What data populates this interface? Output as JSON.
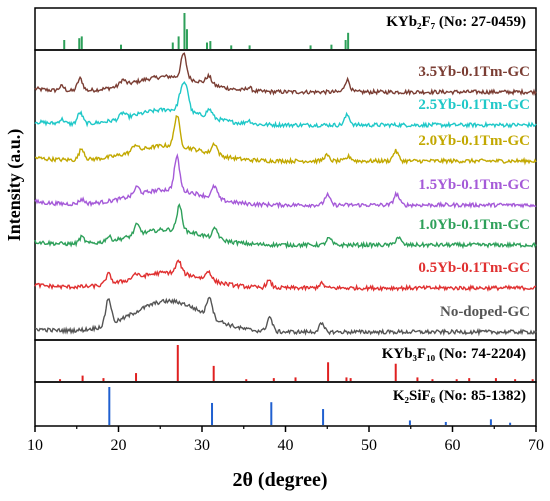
{
  "chart_data": {
    "type": "line",
    "xlabel": "2θ (degree)",
    "ylabel": "Intensity (a.u.)",
    "xlim": [
      10,
      70
    ],
    "xticks": [
      "10",
      "20",
      "30",
      "40",
      "50",
      "60",
      "70"
    ],
    "panels": [
      {
        "name": "KYb2F7",
        "label": "KYb₂F₇ (No: 27-0459)",
        "type": "stick",
        "color": "#2ea05a",
        "peaks": [
          [
            13.5,
            0.25
          ],
          [
            15.3,
            0.3
          ],
          [
            15.6,
            0.35
          ],
          [
            20.3,
            0.12
          ],
          [
            26.5,
            0.18
          ],
          [
            27.2,
            0.35
          ],
          [
            27.9,
            1.0
          ],
          [
            28.2,
            0.55
          ],
          [
            30.6,
            0.18
          ],
          [
            31.0,
            0.22
          ],
          [
            33.5,
            0.1
          ],
          [
            35.7,
            0.1
          ],
          [
            43.0,
            0.1
          ],
          [
            45.5,
            0.12
          ],
          [
            47.2,
            0.25
          ],
          [
            47.5,
            0.45
          ]
        ]
      },
      {
        "name": "patterns",
        "series": [
          {
            "name": "3.5Yb-0.1Tm-GC",
            "color": "#7a3d33",
            "peaks": [
              [
                13.2,
                0.2
              ],
              [
                15.4,
                0.55
              ],
              [
                20.5,
                0.25
              ],
              [
                27.8,
                1.1
              ],
              [
                30.8,
                0.35
              ],
              [
                35.6,
                0.15
              ],
              [
                47.4,
                0.55
              ]
            ]
          },
          {
            "name": "2.5Yb-0.1Tm-GC",
            "color": "#1fc8c8",
            "peaks": [
              [
                13.2,
                0.2
              ],
              [
                15.4,
                0.5
              ],
              [
                20.5,
                0.25
              ],
              [
                27.5,
                0.8
              ],
              [
                28.1,
                1.1
              ],
              [
                30.9,
                0.35
              ],
              [
                35.6,
                0.15
              ],
              [
                47.4,
                0.45
              ]
            ]
          },
          {
            "name": "2.0Yb-0.1Tm-GC",
            "color": "#c2a800",
            "peaks": [
              [
                15.6,
                0.5
              ],
              [
                22.0,
                0.3
              ],
              [
                27.0,
                1.4
              ],
              [
                31.5,
                0.5
              ],
              [
                44.9,
                0.25
              ],
              [
                47.6,
                0.2
              ],
              [
                53.2,
                0.45
              ]
            ]
          },
          {
            "name": "1.5Yb-0.1Tm-GC",
            "color": "#a55ad8",
            "peaks": [
              [
                15.6,
                0.2
              ],
              [
                22.2,
                0.35
              ],
              [
                27.0,
                1.5
              ],
              [
                31.5,
                0.55
              ],
              [
                45.0,
                0.45
              ],
              [
                53.3,
                0.5
              ]
            ]
          },
          {
            "name": "1.0Yb-0.1Tm-GC",
            "color": "#2ea05a",
            "peaks": [
              [
                15.6,
                0.3
              ],
              [
                18.8,
                0.2
              ],
              [
                22.2,
                0.45
              ],
              [
                27.3,
                1.1
              ],
              [
                31.6,
                0.45
              ],
              [
                45.2,
                0.3
              ],
              [
                53.5,
                0.35
              ]
            ]
          },
          {
            "name": "0.5Yb-0.1Tm-GC",
            "color": "#e03030",
            "peaks": [
              [
                18.8,
                0.45
              ],
              [
                22.0,
                0.2
              ],
              [
                27.2,
                0.55
              ],
              [
                30.8,
                0.4
              ],
              [
                38.0,
                0.3
              ],
              [
                44.3,
                0.2
              ]
            ]
          },
          {
            "name": "No-doped-GC",
            "color": "#555555",
            "peaks": [
              [
                18.8,
                1.2
              ],
              [
                30.9,
                0.9
              ],
              [
                38.1,
                0.65
              ],
              [
                44.3,
                0.35
              ]
            ]
          }
        ]
      },
      {
        "name": "KYb3F10",
        "label": "KYb₃F₁₀ (No: 74-2204)",
        "type": "stick",
        "color": "#e02020",
        "peaks": [
          [
            13.0,
            0.05
          ],
          [
            15.7,
            0.15
          ],
          [
            18.2,
            0.08
          ],
          [
            22.1,
            0.22
          ],
          [
            27.1,
            1.0
          ],
          [
            31.4,
            0.42
          ],
          [
            35.3,
            0.05
          ],
          [
            38.6,
            0.08
          ],
          [
            41.2,
            0.1
          ],
          [
            45.1,
            0.52
          ],
          [
            47.3,
            0.1
          ],
          [
            47.8,
            0.08
          ],
          [
            53.2,
            0.48
          ],
          [
            55.8,
            0.1
          ],
          [
            57.6,
            0.05
          ],
          [
            60.5,
            0.05
          ],
          [
            62.0,
            0.08
          ],
          [
            65.2,
            0.08
          ],
          [
            67.5,
            0.05
          ],
          [
            69.6,
            0.05
          ]
        ]
      },
      {
        "name": "K2SiF6",
        "label": "K₂SiF₆ (No: 85-1382)",
        "type": "stick",
        "color": "#2060d0",
        "peaks": [
          [
            18.9,
            1.0
          ],
          [
            31.2,
            0.58
          ],
          [
            38.3,
            0.6
          ],
          [
            44.5,
            0.42
          ],
          [
            54.9,
            0.12
          ],
          [
            59.2,
            0.08
          ],
          [
            64.6,
            0.15
          ],
          [
            66.9,
            0.06
          ]
        ]
      }
    ]
  }
}
